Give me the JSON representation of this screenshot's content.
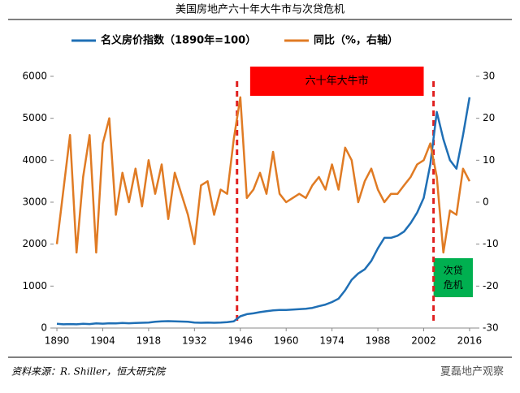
{
  "chart_data": {
    "type": "line",
    "title": "美国房地产六十年大牛市与次贷危机",
    "x": [
      1890,
      1892,
      1894,
      1896,
      1898,
      1900,
      1902,
      1904,
      1906,
      1908,
      1910,
      1912,
      1914,
      1916,
      1918,
      1920,
      1922,
      1924,
      1926,
      1928,
      1930,
      1932,
      1934,
      1936,
      1938,
      1940,
      1942,
      1944,
      1946,
      1948,
      1950,
      1952,
      1954,
      1956,
      1958,
      1960,
      1962,
      1964,
      1966,
      1968,
      1970,
      1972,
      1974,
      1976,
      1978,
      1980,
      1982,
      1984,
      1986,
      1988,
      1990,
      1992,
      1994,
      1996,
      1998,
      2000,
      2002,
      2004,
      2006,
      2008,
      2010,
      2012,
      2014,
      2016
    ],
    "series": [
      {
        "name": "名义房价指数（1890年=100）",
        "color": "#1f6fb5",
        "values": [
          100,
          90,
          95,
          90,
          100,
          95,
          110,
          105,
          115,
          110,
          120,
          115,
          120,
          125,
          130,
          150,
          160,
          165,
          160,
          155,
          150,
          130,
          125,
          130,
          125,
          130,
          140,
          160,
          280,
          330,
          350,
          380,
          400,
          420,
          430,
          430,
          440,
          450,
          460,
          480,
          520,
          560,
          620,
          700,
          900,
          1150,
          1300,
          1400,
          1600,
          1900,
          2150,
          2150,
          2200,
          2300,
          2500,
          2750,
          3100,
          3900,
          5150,
          4500,
          4000,
          3800,
          4600,
          5500
        ]
      },
      {
        "name": "同比（%，右轴）",
        "color": "#e07b24",
        "axis": "y2",
        "values": [
          -10,
          3,
          16,
          -12,
          6,
          16,
          -12,
          14,
          20,
          -3,
          7,
          0,
          8,
          -1,
          10,
          2,
          9,
          -4,
          7,
          2,
          -3,
          -10,
          4,
          5,
          -3,
          3,
          2,
          15,
          25,
          1,
          3,
          7,
          2,
          12,
          2,
          0,
          1,
          2,
          1,
          4,
          6,
          3,
          9,
          3,
          13,
          10,
          0,
          5,
          8,
          3,
          0,
          2,
          2,
          4,
          6,
          9,
          10,
          14,
          6,
          -12,
          -2,
          -3,
          8,
          5
        ]
      }
    ],
    "xlim": [
      1889,
      2018
    ],
    "xticks": [
      1890,
      1904,
      1918,
      1932,
      1946,
      1960,
      1974,
      1988,
      2002,
      2016
    ],
    "ylim": [
      0,
      6000
    ],
    "yticks": [
      0,
      1000,
      2000,
      3000,
      4000,
      5000,
      6000
    ],
    "y2lim": [
      -30,
      30
    ],
    "y2ticks": [
      -30,
      -20,
      -10,
      0,
      10,
      20,
      30
    ],
    "vlines": [
      1945,
      2005
    ],
    "annotations": [
      {
        "text": "六十年大牛市",
        "color": "#ff0000",
        "from": 1949,
        "to": 2002
      },
      {
        "text": "次贷危机",
        "color": "#00b050",
        "from": 2005,
        "to": 2017
      }
    ],
    "source": "资料来源：R. Shiller，恒大研究院",
    "watermark": "夏磊地产观察"
  }
}
